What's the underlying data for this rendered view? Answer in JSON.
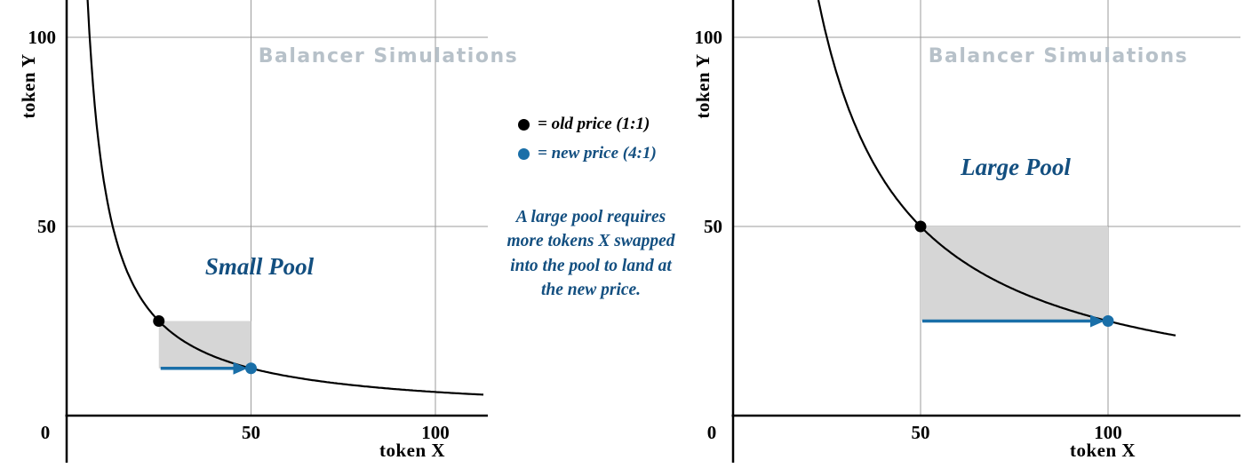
{
  "figure": {
    "watermark": "Balancer Simulations"
  },
  "legend": {
    "old_label": "= old price (1:1)",
    "new_label": "= new price (4:1)"
  },
  "note": "A large pool requires more tokens X swapped into the pool to land at the new price.",
  "colors": {
    "blue": "#1a6fa8",
    "text_blue": "#134f80",
    "watermark_gray": "#b7c1c9",
    "curve_black": "#000000",
    "shade_gray": "#d6d6d6",
    "grid_gray": "#9b9b9b"
  },
  "chart_data": [
    {
      "type": "line",
      "title": "Small Pool",
      "xlabel": "token X",
      "ylabel": "token Y",
      "xlim": [
        0,
        115
      ],
      "ylim": [
        0,
        110
      ],
      "xticks": [
        0,
        50,
        100
      ],
      "yticks": [
        50,
        100
      ],
      "curve": "constant product x * y = k",
      "k": 625,
      "points": [
        {
          "name": "old price (1:1)",
          "x": 25,
          "y": 25,
          "color": "#000000"
        },
        {
          "name": "new price (4:1)",
          "x": 50,
          "y": 12.5,
          "color": "#1a6fa8"
        }
      ],
      "swap_arrow": {
        "from_x": 25,
        "to_x": 50,
        "at_y": 12.5
      },
      "shaded_region": {
        "x": [
          25,
          50
        ],
        "y": [
          12.5,
          25
        ]
      },
      "watermark": "Balancer Simulations",
      "grid": true,
      "legend_position": "none"
    },
    {
      "type": "line",
      "title": "Large Pool",
      "xlabel": "token X",
      "ylabel": "token Y",
      "xlim": [
        0,
        120
      ],
      "ylim": [
        0,
        110
      ],
      "xticks": [
        0,
        50,
        100
      ],
      "yticks": [
        50,
        100
      ],
      "curve": "constant product x * y = k",
      "k": 2500,
      "points": [
        {
          "name": "old price (1:1)",
          "x": 50,
          "y": 50,
          "color": "#000000"
        },
        {
          "name": "new price (4:1)",
          "x": 100,
          "y": 25,
          "color": "#1a6fa8"
        }
      ],
      "swap_arrow": {
        "from_x": 50,
        "to_x": 100,
        "at_y": 25
      },
      "shaded_region": {
        "x": [
          50,
          100
        ],
        "y": [
          25,
          50
        ]
      },
      "watermark": "Balancer Simulations",
      "grid": true,
      "legend_position": "none"
    }
  ]
}
